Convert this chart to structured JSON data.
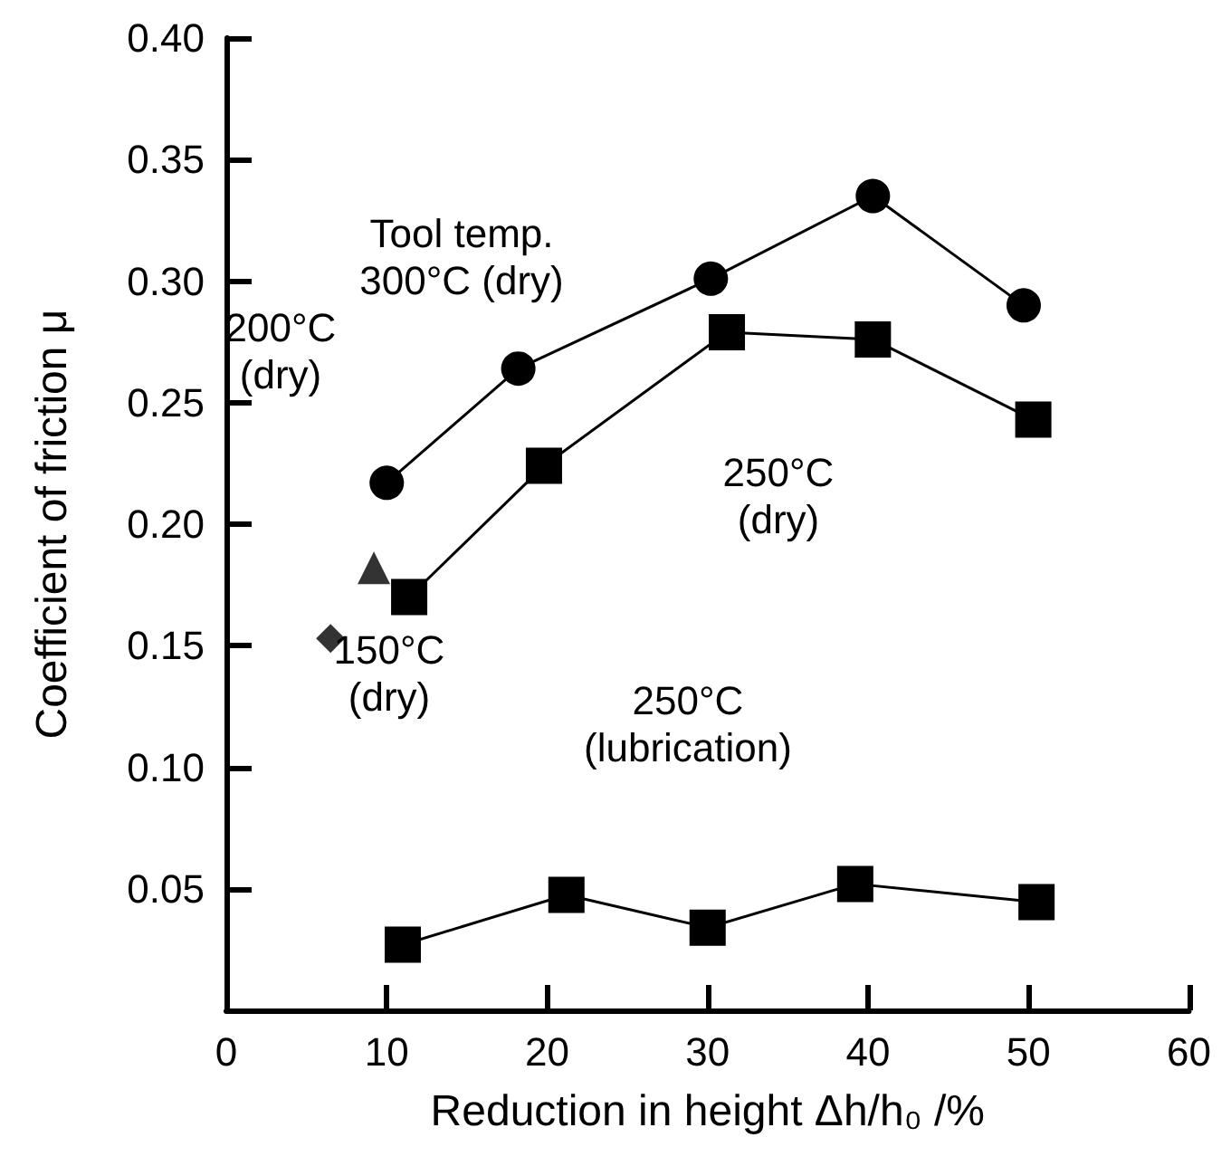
{
  "chart_data": {
    "type": "line",
    "xlabel": "Reduction in height Δh/h₀ /%",
    "ylabel": "Coefficient of friction μ",
    "xlim": [
      0,
      60
    ],
    "xticks": [
      0,
      10,
      20,
      30,
      40,
      50,
      60
    ],
    "ylim": [
      0,
      0.4
    ],
    "yticks": [
      {
        "value": 0.05,
        "label": "0.05"
      },
      {
        "value": 0.1,
        "label": "0.10"
      },
      {
        "value": 0.15,
        "label": "0.15"
      },
      {
        "value": 0.2,
        "label": "0.20"
      },
      {
        "value": 0.25,
        "label": "0.25"
      },
      {
        "value": 0.3,
        "label": "0.30"
      },
      {
        "value": 0.35,
        "label": "0.35"
      },
      {
        "value": 0.4,
        "label": "0.40"
      }
    ],
    "grid": false,
    "line_style": "solid",
    "series": [
      {
        "color": "#000000",
        "marker": "circle",
        "x": [
          10,
          18.2,
          30.2,
          40.3,
          49.7
        ],
        "values": [
          0.217,
          0.264,
          0.301,
          0.335,
          0.29
        ]
      },
      {
        "color": "#000000",
        "marker": "square",
        "x": [
          11.4,
          19.8,
          31.2,
          40.3,
          50.3
        ],
        "values": [
          0.17,
          0.224,
          0.279,
          0.276,
          0.243
        ]
      },
      {
        "type": "scatter",
        "color": "#000000",
        "marker": "triangle",
        "x": [
          9.2
        ],
        "values": [
          0.182
        ]
      },
      {
        "type": "scatter",
        "color": "#000000",
        "marker": "diamond",
        "x": [
          6.5
        ],
        "values": [
          0.153
        ]
      },
      {
        "color": "#000000",
        "marker": "square",
        "x": [
          11,
          21.2,
          30,
          39.2,
          50.5
        ],
        "values": [
          0.027,
          0.0475,
          0.034,
          0.052,
          0.0445
        ]
      }
    ],
    "annotations": [
      "Tool temp.\n300°C (dry)",
      "200°C\n(dry)",
      "250°C\n(dry)",
      "150°C\n(dry)",
      "250°C\n(lubrication)"
    ]
  }
}
